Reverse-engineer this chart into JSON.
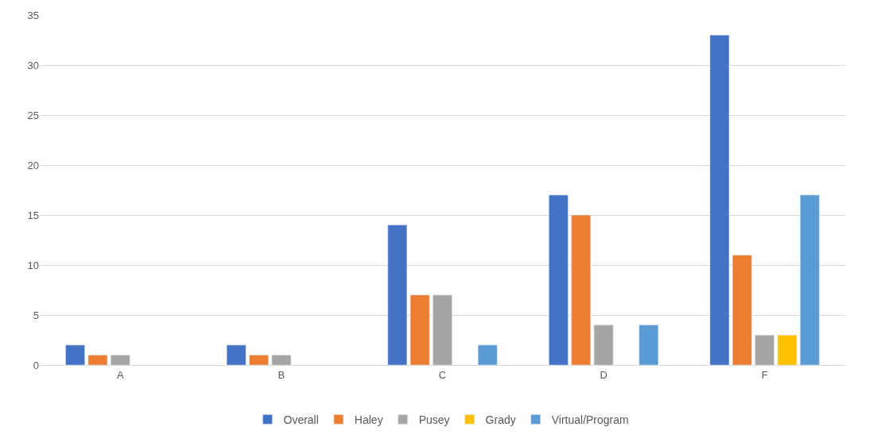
{
  "chart_data": {
    "type": "bar",
    "categories": [
      "A",
      "B",
      "C",
      "D",
      "F"
    ],
    "series": [
      {
        "name": "Overall",
        "color": "#4472c4",
        "values": [
          2,
          2,
          14,
          17,
          33
        ]
      },
      {
        "name": "Haley",
        "color": "#ed7d31",
        "values": [
          1,
          1,
          7,
          15,
          11
        ]
      },
      {
        "name": "Pusey",
        "color": "#a5a5a5",
        "values": [
          1,
          1,
          7,
          4,
          3
        ]
      },
      {
        "name": "Grady",
        "color": "#ffc000",
        "values": [
          null,
          null,
          null,
          null,
          3
        ]
      },
      {
        "name": "Virtual/Program",
        "color": "#5b9bd5",
        "values": [
          null,
          null,
          2,
          4,
          17
        ]
      }
    ],
    "ylim": [
      0,
      35
    ],
    "yticks": [
      0,
      5,
      10,
      15,
      20,
      25,
      30,
      35
    ],
    "grid": "y",
    "legend": "bottom"
  }
}
